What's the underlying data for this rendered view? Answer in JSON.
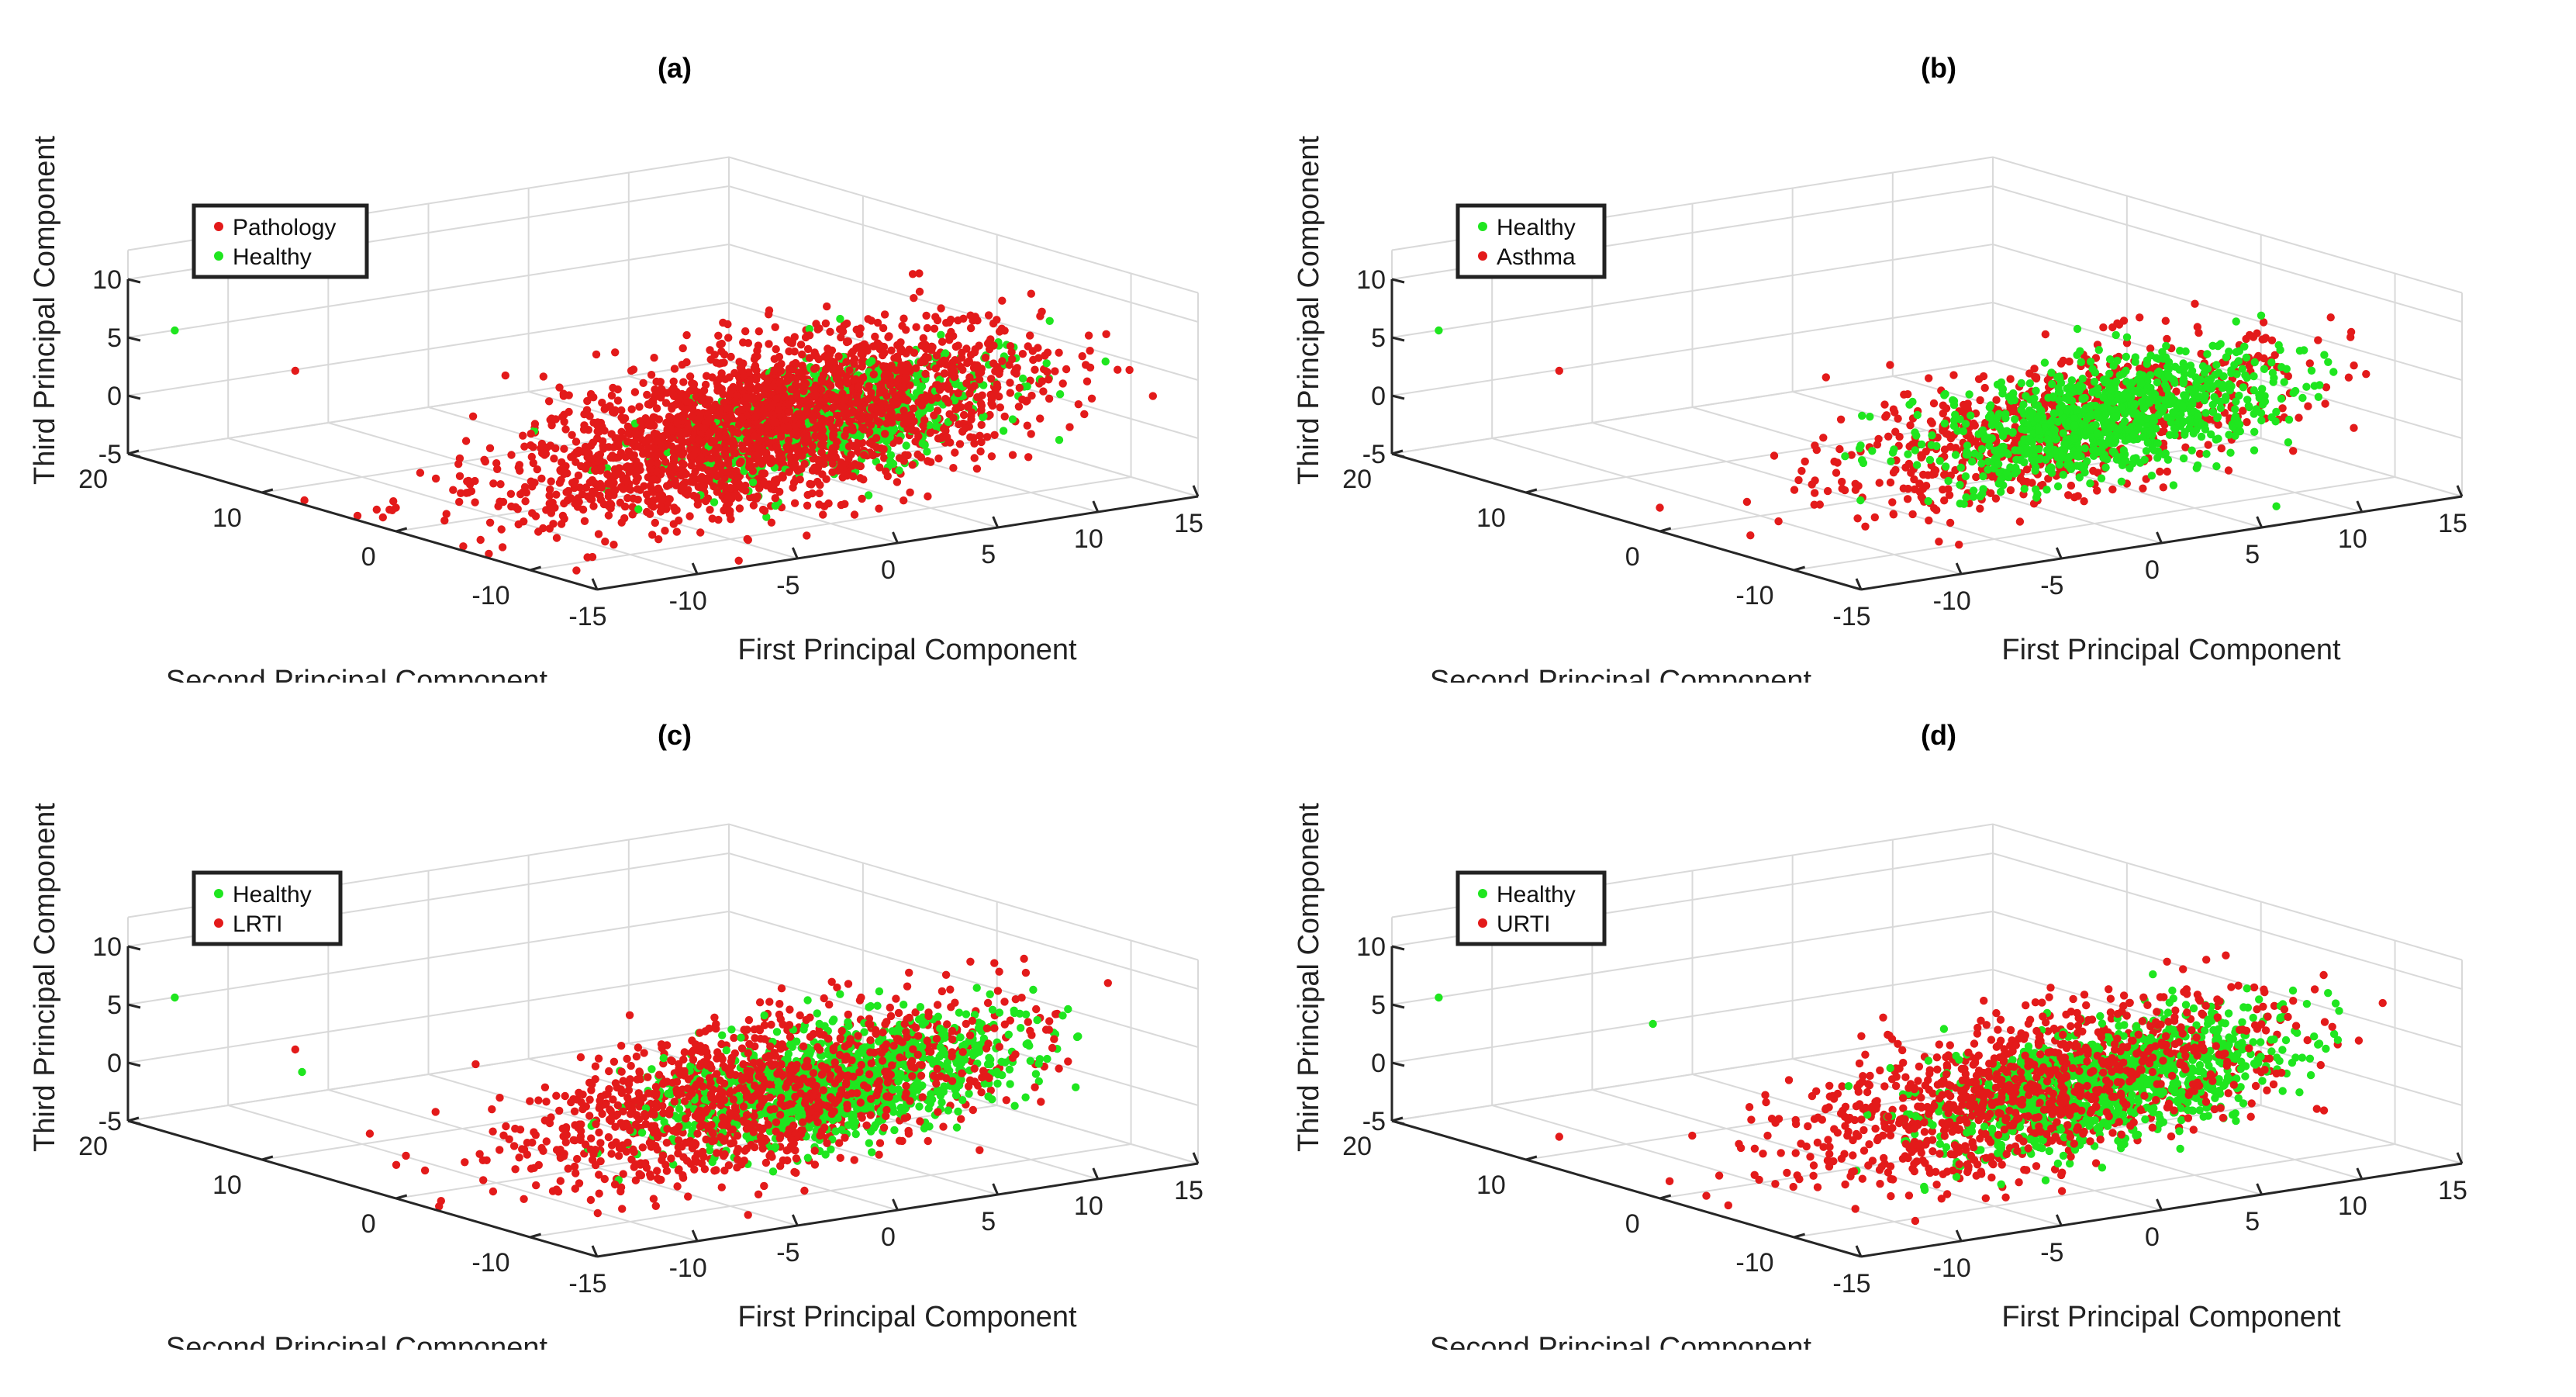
{
  "colors": {
    "healthy": "#1FE61F",
    "disease": "#E31A1A",
    "grid": "#d9d9d9",
    "axis": "#262626"
  },
  "chart_data": [
    {
      "type": "scatter",
      "title": "(a)",
      "xlabel": "First Principal Component",
      "ylabel": "Second Principal Component",
      "zlabel": "Third Principal Component",
      "xlim": [
        -15,
        15
      ],
      "ylim": [
        -15,
        20
      ],
      "zlim": [
        -5,
        10
      ],
      "xticks": [
        "-15",
        "-10",
        "-5",
        "0",
        "5",
        "10",
        "15"
      ],
      "yticks": [
        "-10",
        "0",
        "10",
        "20"
      ],
      "zticks": [
        "-5",
        "0",
        "5",
        "10"
      ],
      "legend_location": "top-left",
      "series": [
        {
          "name": "Pathology",
          "color": "#E31A1A",
          "n": 2600,
          "center": [
            2.0,
            -3.0,
            0.8
          ],
          "spread": [
            5.5,
            4.0,
            2.2
          ]
        },
        {
          "name": "Healthy",
          "color": "#1FE61F",
          "n": 520,
          "center": [
            4.5,
            -4.5,
            1.2
          ],
          "spread": [
            4.0,
            3.0,
            1.6
          ]
        }
      ],
      "draw_order": [
        0,
        1,
        0
      ],
      "outliers": [
        {
          "series": "Healthy",
          "point": [
            -14,
            18,
            6
          ]
        },
        {
          "series": "Pathology",
          "point": [
            -12,
            12,
            4
          ]
        },
        {
          "series": "Pathology",
          "point": [
            -13,
            3,
            -4.5
          ]
        }
      ]
    },
    {
      "type": "scatter",
      "title": "(b)",
      "xlabel": "First Principal Component",
      "ylabel": "Second Principal Component",
      "zlabel": "Third Principal Component",
      "xlim": [
        -15,
        15
      ],
      "ylim": [
        -15,
        20
      ],
      "zlim": [
        -5,
        10
      ],
      "xticks": [
        "-15",
        "-10",
        "-5",
        "0",
        "5",
        "10",
        "15"
      ],
      "yticks": [
        "-10",
        "0",
        "10",
        "20"
      ],
      "zticks": [
        "-5",
        "0",
        "5",
        "10"
      ],
      "legend_location": "top-left",
      "series": [
        {
          "name": "Healthy",
          "color": "#1FE61F",
          "n": 900,
          "center": [
            4.5,
            -4.0,
            0.8
          ],
          "spread": [
            4.0,
            3.0,
            1.7
          ]
        },
        {
          "name": "Asthma",
          "color": "#E31A1A",
          "n": 800,
          "center": [
            3.0,
            -3.5,
            0.6
          ],
          "spread": [
            5.0,
            3.5,
            1.9
          ]
        }
      ],
      "draw_order": [
        1,
        0
      ],
      "outliers": [
        {
          "series": "Healthy",
          "point": [
            -14,
            18,
            6
          ]
        },
        {
          "series": "Asthma",
          "point": [
            -12,
            12,
            4
          ]
        },
        {
          "series": "Asthma",
          "point": [
            -13,
            3,
            -4.5
          ]
        }
      ]
    },
    {
      "type": "scatter",
      "title": "(c)",
      "xlabel": "First Principal Component",
      "ylabel": "Second Principal Component",
      "zlabel": "Third Principal Component",
      "xlim": [
        -15,
        15
      ],
      "ylim": [
        -15,
        20
      ],
      "zlim": [
        -5,
        10
      ],
      "xticks": [
        "-15",
        "-10",
        "-5",
        "0",
        "5",
        "10",
        "15"
      ],
      "yticks": [
        "-10",
        "0",
        "10",
        "20"
      ],
      "zticks": [
        "-5",
        "0",
        "5",
        "10"
      ],
      "legend_location": "top-left",
      "series": [
        {
          "name": "Healthy",
          "color": "#1FE61F",
          "n": 1000,
          "center": [
            4.5,
            -4.0,
            1.0
          ],
          "spread": [
            4.0,
            3.0,
            1.7
          ]
        },
        {
          "name": "LRTI",
          "color": "#E31A1A",
          "n": 1300,
          "center": [
            1.5,
            -3.0,
            0.6
          ],
          "spread": [
            5.5,
            3.8,
            2.0
          ]
        }
      ],
      "draw_order": [
        1,
        0,
        1
      ],
      "outliers": [
        {
          "series": "Healthy",
          "point": [
            -14,
            18,
            6
          ]
        },
        {
          "series": "Healthy",
          "point": [
            -13,
            10,
            2
          ]
        },
        {
          "series": "LRTI",
          "point": [
            -12,
            12,
            3
          ]
        }
      ]
    },
    {
      "type": "scatter",
      "title": "(d)",
      "xlabel": "First Principal Component",
      "ylabel": "Second Principal Component",
      "zlabel": "Third Principal Component",
      "xlim": [
        -15,
        15
      ],
      "ylim": [
        -15,
        20
      ],
      "zlim": [
        -5,
        10
      ],
      "xticks": [
        "-15",
        "-10",
        "-5",
        "0",
        "5",
        "10",
        "15"
      ],
      "yticks": [
        "-10",
        "0",
        "10",
        "20"
      ],
      "zticks": [
        "-5",
        "0",
        "5",
        "10"
      ],
      "legend_location": "top-left",
      "series": [
        {
          "name": "Healthy",
          "color": "#1FE61F",
          "n": 1000,
          "center": [
            4.5,
            -4.0,
            1.0
          ],
          "spread": [
            4.0,
            3.0,
            1.8
          ]
        },
        {
          "name": "URTI",
          "color": "#E31A1A",
          "n": 1200,
          "center": [
            2.0,
            -3.0,
            0.8
          ],
          "spread": [
            5.5,
            3.8,
            2.2
          ]
        }
      ],
      "draw_order": [
        1,
        0,
        1
      ],
      "outliers": [
        {
          "series": "Healthy",
          "point": [
            -14,
            18,
            6
          ]
        },
        {
          "series": "Healthy",
          "point": [
            -10,
            8,
            6
          ]
        },
        {
          "series": "URTI",
          "point": [
            -12,
            12,
            -4.5
          ]
        }
      ]
    }
  ]
}
